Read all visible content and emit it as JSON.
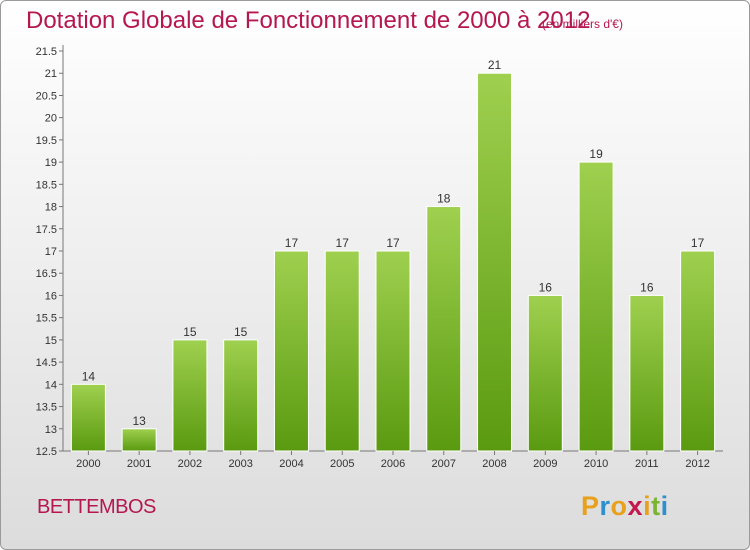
{
  "title": "Dotation Globale de Fonctionnement de 2000 à 2012",
  "subtitle": "(en milliers d'€)",
  "commune": "BETTEMBOS",
  "logo": {
    "letters": [
      "P",
      "r",
      "o",
      "x",
      "i",
      "t",
      "i"
    ],
    "colors": [
      "#e8a11c",
      "#2e8fd0",
      "#e8a11c",
      "#c4174d",
      "#e8a11c",
      "#7ab431",
      "#2e8fd0"
    ]
  },
  "chart_data": {
    "type": "bar",
    "categories": [
      "2000",
      "2001",
      "2002",
      "2003",
      "2004",
      "2005",
      "2006",
      "2007",
      "2008",
      "2009",
      "2010",
      "2011",
      "2012"
    ],
    "values": [
      14,
      13,
      15,
      15,
      17,
      17,
      17,
      18,
      21,
      16,
      19,
      16,
      17
    ],
    "value_labels": [
      "14",
      "13",
      "15",
      "15",
      "17",
      "17",
      "17",
      "18",
      "21",
      "16",
      "19",
      "16",
      "17"
    ],
    "ylim": [
      12.5,
      21.5
    ],
    "yticks": [
      "12.5",
      "13",
      "13.5",
      "14",
      "14.5",
      "15",
      "15.5",
      "16",
      "16.5",
      "17",
      "17.5",
      "18",
      "18.5",
      "19",
      "19.5",
      "20",
      "20.5",
      "21",
      "21.5"
    ],
    "bar_color_top": "#9fd04f",
    "bar_color_bottom": "#5a9a10",
    "grid": false
  }
}
